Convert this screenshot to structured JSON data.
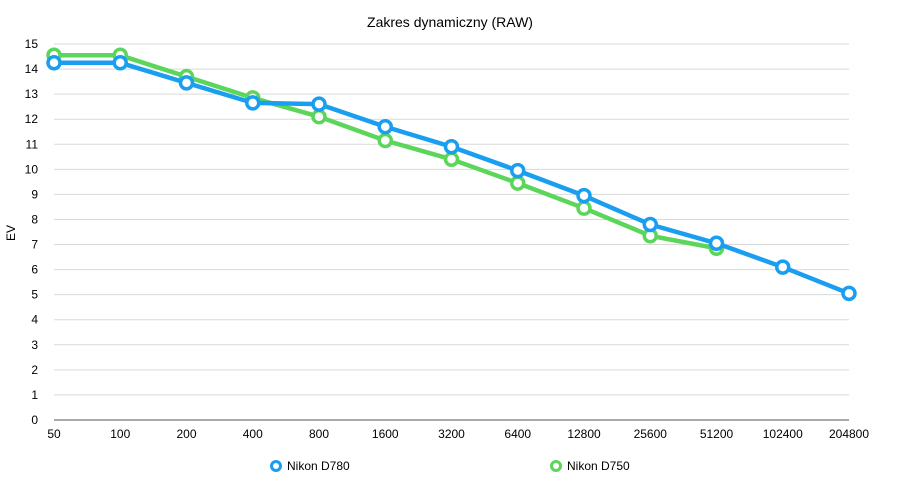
{
  "chart_data": {
    "type": "line",
    "title": "Zakres dynamiczny (RAW)",
    "xlabel": "",
    "ylabel": "EV",
    "ylim": [
      0,
      15
    ],
    "yticks": [
      0,
      1,
      2,
      3,
      4,
      5,
      6,
      7,
      8,
      9,
      10,
      11,
      12,
      13,
      14,
      15
    ],
    "categories": [
      "50",
      "100",
      "200",
      "400",
      "800",
      "1600",
      "3200",
      "6400",
      "12800",
      "25600",
      "51200",
      "102400",
      "204800"
    ],
    "grid": true,
    "legend_position": "bottom",
    "series": [
      {
        "name": "Nikon D780",
        "color": "#1a9ef0",
        "values": [
          14.25,
          14.25,
          13.45,
          12.65,
          12.6,
          11.7,
          10.9,
          9.95,
          8.95,
          7.8,
          7.05,
          6.1,
          5.05
        ]
      },
      {
        "name": "Nikon D750",
        "color": "#5bd65b",
        "values": [
          14.55,
          14.55,
          13.7,
          12.85,
          12.1,
          11.15,
          10.4,
          9.45,
          8.45,
          7.35,
          6.85,
          null,
          null
        ]
      }
    ]
  }
}
